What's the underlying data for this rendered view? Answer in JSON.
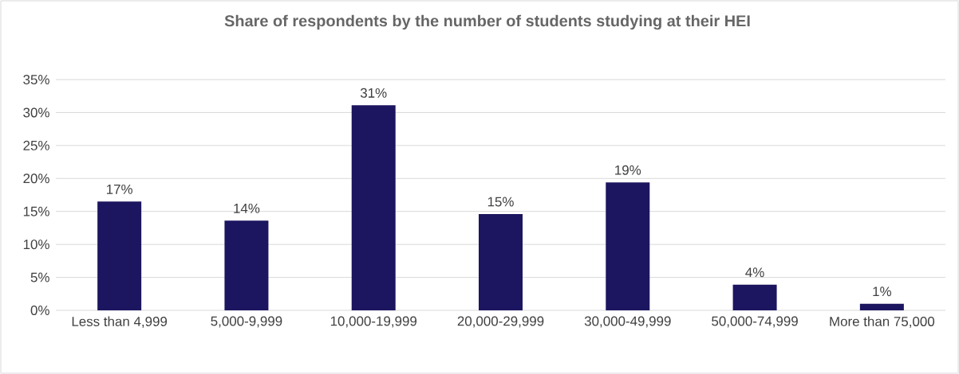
{
  "chart_data": {
    "type": "bar",
    "title": "Share of respondents by the number of students studying at their HEI",
    "categories": [
      "Less than 4,999",
      "5,000-9,999",
      "10,000-19,999",
      "20,000-29,999",
      "30,000-49,999",
      "50,000-74,999",
      "More than 75,000"
    ],
    "values": [
      16.5,
      13.6,
      31.1,
      14.6,
      19.4,
      3.9,
      1.0
    ],
    "value_labels": [
      "17%",
      "14%",
      "31%",
      "15%",
      "19%",
      "4%",
      "1%"
    ],
    "color": "#1c1660",
    "ylim": [
      0,
      35
    ],
    "yticks": [
      {
        "value": 0,
        "label": "0%"
      },
      {
        "value": 5,
        "label": "5%"
      },
      {
        "value": 10,
        "label": "10%"
      },
      {
        "value": 15,
        "label": "15%"
      },
      {
        "value": 20,
        "label": "20%"
      },
      {
        "value": 25,
        "label": "25%"
      },
      {
        "value": 30,
        "label": "30%"
      },
      {
        "value": 35,
        "label": "35%"
      }
    ],
    "grid": "y"
  }
}
